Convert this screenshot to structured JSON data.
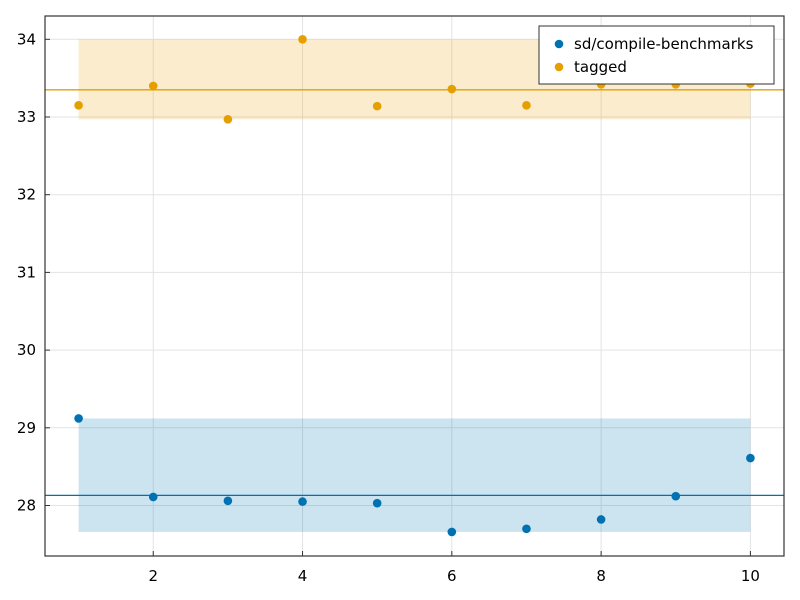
{
  "chart_data": {
    "type": "scatter",
    "xlim": [
      0.55,
      10.45
    ],
    "ylim": [
      27.35,
      34.3
    ],
    "xticks": [
      2,
      4,
      6,
      8,
      10
    ],
    "yticks": [
      28,
      29,
      30,
      31,
      32,
      33,
      34
    ],
    "grid": true,
    "legend_position": "top-right",
    "series": [
      {
        "name": "sd/compile-benchmarks",
        "color": "#0072b2",
        "x": [
          1,
          2,
          3,
          4,
          5,
          6,
          7,
          8,
          9,
          10
        ],
        "y": [
          29.12,
          28.11,
          28.06,
          28.05,
          28.03,
          27.66,
          27.7,
          27.82,
          28.12,
          28.61
        ],
        "mean": 28.13,
        "band": [
          27.66,
          29.12
        ],
        "band_x": [
          1,
          10
        ]
      },
      {
        "name": "tagged",
        "color": "#e69f00",
        "x": [
          1,
          2,
          3,
          4,
          5,
          6,
          7,
          8,
          9,
          10
        ],
        "y": [
          33.15,
          33.4,
          32.97,
          34.0,
          33.14,
          33.36,
          33.15,
          33.42,
          33.42,
          33.43
        ],
        "mean": 33.35,
        "band": [
          32.97,
          34.0
        ],
        "band_x": [
          1,
          10
        ]
      }
    ]
  }
}
